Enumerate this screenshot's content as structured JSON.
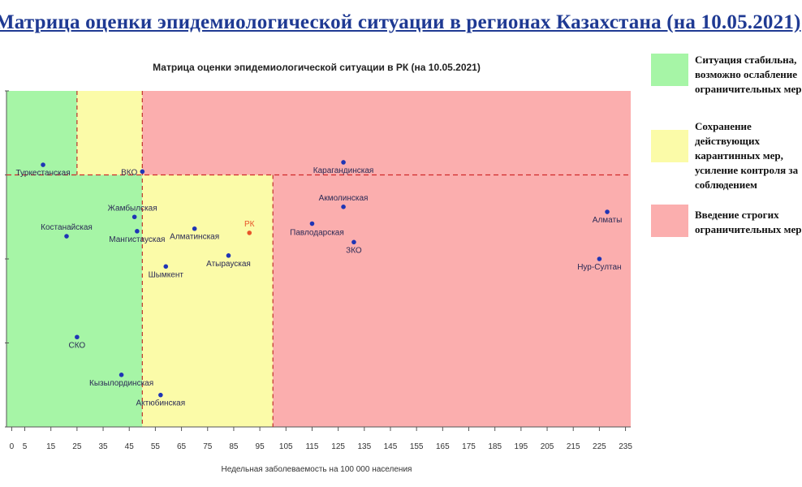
{
  "slide_title": "Матрица оценки эпидемиологической ситуации в регионах Казахстана (на 10.05.2021)",
  "legend": [
    {
      "text": "Ситуация стабильна,\nвозможно ослабление\nограничительных мер",
      "color": "#a6f5a6"
    },
    {
      "text": "Сохранение\nдействующих\nкарантинных мер,\nусиление контроля за\nсоблюдением",
      "color": "#fbfba8"
    },
    {
      "text": "Введение строгих\nограничительных мер",
      "color": "#fbaeae"
    }
  ],
  "chart_data": {
    "type": "scatter",
    "title": "Матрица оценки эпидемиологической ситуации в РК (на 10.05.2021)",
    "xlabel": "Недельная заболеваемость на 100 000 населения",
    "ylabel": "",
    "xlim": [
      -2,
      237
    ],
    "ylim": [
      0,
      4
    ],
    "x_ticks": [
      0,
      5,
      15,
      25,
      35,
      45,
      55,
      65,
      75,
      85,
      95,
      105,
      115,
      125,
      135,
      145,
      155,
      165,
      175,
      185,
      195,
      205,
      215,
      225,
      235
    ],
    "y_ticks": [
      0,
      1,
      2,
      3,
      4
    ],
    "y_tick_labels": false,
    "grid": false,
    "thresholds": {
      "x_dashed": [
        25,
        50
      ],
      "y_dashed": 3
    },
    "zones": [
      {
        "x": [
          -2,
          50
        ],
        "y": [
          0,
          3
        ],
        "color": "#a6f5a6"
      },
      {
        "x": [
          -2,
          25
        ],
        "y": [
          3,
          4
        ],
        "color": "#a6f5a6"
      },
      {
        "x": [
          25,
          50
        ],
        "y": [
          3,
          4
        ],
        "color": "#fbfba8"
      },
      {
        "x": [
          50,
          100
        ],
        "y": [
          0,
          3
        ],
        "color": "#fbfba8"
      },
      {
        "x": [
          50,
          237
        ],
        "y": [
          3,
          4
        ],
        "color": "#fbaeae"
      },
      {
        "x": [
          100,
          237
        ],
        "y": [
          0,
          3
        ],
        "color": "#fbaeae"
      }
    ],
    "points": [
      {
        "name": "Туркестанская",
        "x": 12,
        "y": 3.12,
        "color": "#1f35b5",
        "label_pos": "below"
      },
      {
        "name": "ВКО",
        "x": 50,
        "y": 3.04,
        "color": "#1f35b5",
        "label_pos": "left"
      },
      {
        "name": "Карагандинская",
        "x": 127,
        "y": 3.15,
        "color": "#1f35b5",
        "label_pos": "below"
      },
      {
        "name": "Жамбылская",
        "x": 47,
        "y": 2.5,
        "color": "#1f35b5",
        "label_pos": "above-left"
      },
      {
        "name": "Костанайская",
        "x": 21,
        "y": 2.27,
        "color": "#1f35b5",
        "label_pos": "above"
      },
      {
        "name": "Мангистауская",
        "x": 48,
        "y": 2.33,
        "color": "#1f35b5",
        "label_pos": "below"
      },
      {
        "name": "Алматинская",
        "x": 70,
        "y": 2.36,
        "color": "#1f35b5",
        "label_pos": "below"
      },
      {
        "name": "РК",
        "x": 91,
        "y": 2.31,
        "color": "#e8542a",
        "label_pos": "above"
      },
      {
        "name": "Акмолинская",
        "x": 127,
        "y": 2.62,
        "color": "#1f35b5",
        "label_pos": "above"
      },
      {
        "name": "Павлодарская",
        "x": 115,
        "y": 2.42,
        "color": "#1f35b5",
        "label_pos": "below-left"
      },
      {
        "name": "ЗКО",
        "x": 131,
        "y": 2.2,
        "color": "#1f35b5",
        "label_pos": "below"
      },
      {
        "name": "Алматы",
        "x": 228,
        "y": 2.56,
        "color": "#1f35b5",
        "label_pos": "below"
      },
      {
        "name": "Нур-Султан",
        "x": 225,
        "y": 2.0,
        "color": "#1f35b5",
        "label_pos": "below"
      },
      {
        "name": "Атырауская",
        "x": 83,
        "y": 2.04,
        "color": "#1f35b5",
        "label_pos": "below"
      },
      {
        "name": "Шымкент",
        "x": 59,
        "y": 1.91,
        "color": "#1f35b5",
        "label_pos": "below"
      },
      {
        "name": "СКО",
        "x": 25,
        "y": 1.07,
        "color": "#1f35b5",
        "label_pos": "below"
      },
      {
        "name": "Кызылординская",
        "x": 42,
        "y": 0.62,
        "color": "#1f35b5",
        "label_pos": "below"
      },
      {
        "name": "Актюбинская",
        "x": 57,
        "y": 0.38,
        "color": "#1f35b5",
        "label_pos": "below"
      }
    ]
  }
}
